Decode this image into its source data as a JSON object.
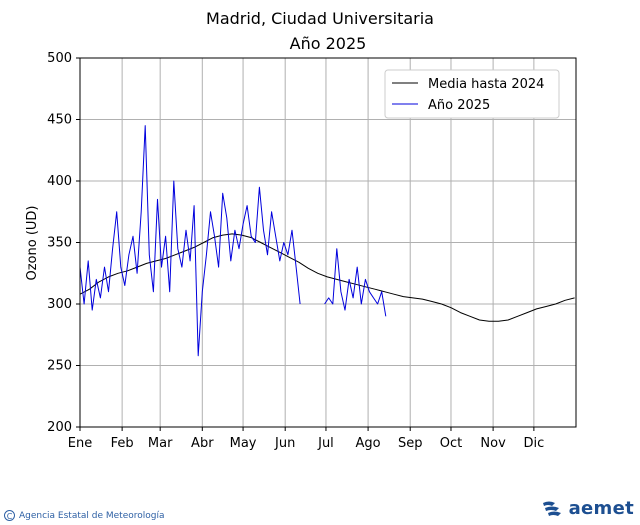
{
  "chart_data": {
    "type": "line",
    "title": "Madrid, Ciudad Universitaria",
    "subtitle": "Año 2025",
    "xlabel": "",
    "ylabel": "Ozono (UD)",
    "ylim": [
      200,
      500
    ],
    "yticks": [
      200,
      250,
      300,
      350,
      400,
      450,
      500
    ],
    "xticks": [
      "Ene",
      "Feb",
      "Mar",
      "Abr",
      "May",
      "Jun",
      "Jul",
      "Ago",
      "Sep",
      "Oct",
      "Nov",
      "Dic"
    ],
    "grid": true,
    "legend_position": "top-right",
    "series": [
      {
        "name": "Media hasta 2024",
        "color": "#000000",
        "x": [
          1,
          8,
          15,
          22,
          29,
          36,
          43,
          50,
          57,
          64,
          71,
          78,
          85,
          92,
          99,
          106,
          113,
          120,
          127,
          134,
          141,
          148,
          155,
          162,
          169,
          176,
          183,
          190,
          197,
          204,
          211,
          218,
          225,
          232,
          239,
          246,
          253,
          260,
          267,
          274,
          281,
          288,
          295,
          302,
          309,
          316,
          323,
          330,
          337,
          344,
          351,
          358,
          365
        ],
        "y": [
          308,
          312,
          318,
          322,
          325,
          327,
          330,
          333,
          335,
          337,
          340,
          343,
          346,
          350,
          354,
          356,
          357,
          356,
          354,
          350,
          346,
          342,
          338,
          334,
          329,
          325,
          322,
          320,
          318,
          316,
          314,
          312,
          310,
          308,
          306,
          305,
          304,
          302,
          300,
          297,
          293,
          290,
          287,
          286,
          286,
          287,
          290,
          293,
          296,
          298,
          300,
          303,
          305
        ]
      },
      {
        "name": "Año 2025",
        "color": "#0000dd",
        "x": [
          1,
          4,
          7,
          10,
          13,
          16,
          19,
          22,
          25,
          28,
          31,
          34,
          37,
          40,
          43,
          46,
          49,
          52,
          55,
          58,
          61,
          64,
          67,
          70,
          73,
          76,
          79,
          82,
          85,
          88,
          91,
          94,
          97,
          100,
          103,
          106,
          109,
          112,
          115,
          118,
          121,
          124,
          127,
          130,
          133,
          136,
          139,
          142,
          145,
          148,
          151,
          154,
          157,
          160,
          163,
          181,
          184,
          187,
          190,
          193,
          196,
          199,
          202,
          205,
          208,
          211,
          214,
          217,
          220,
          223,
          226
        ],
        "y": [
          330,
          300,
          335,
          295,
          320,
          305,
          330,
          310,
          345,
          375,
          330,
          315,
          340,
          355,
          325,
          375,
          445,
          340,
          310,
          385,
          330,
          355,
          310,
          400,
          345,
          330,
          360,
          335,
          380,
          258,
          310,
          340,
          375,
          355,
          330,
          390,
          370,
          335,
          360,
          345,
          365,
          380,
          355,
          350,
          395,
          360,
          340,
          375,
          355,
          335,
          350,
          340,
          360,
          330,
          300,
          300,
          305,
          300,
          345,
          310,
          295,
          320,
          305,
          330,
          300,
          320,
          310,
          305,
          300,
          310,
          290
        ]
      }
    ]
  },
  "footer": {
    "agency": "Agencia Estatal de Meteorología",
    "copyright_symbol": "C",
    "brand": "aemet"
  }
}
